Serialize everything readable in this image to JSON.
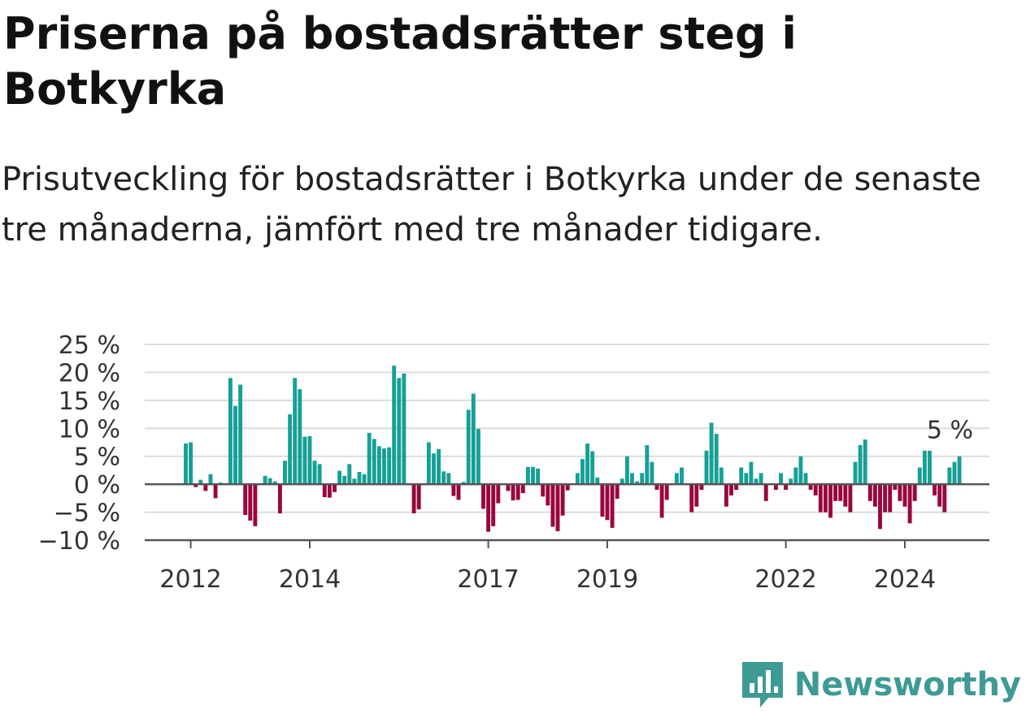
{
  "title": "Priserna på bostadsrätter steg i Botkyrka",
  "subtitle": "Prisutveckling för bostadsrätter i Botkyrka under de senaste tre månaderna, jämfört med tre månader tidigare.",
  "brand": {
    "name": "Newsworthy",
    "icon": "newsworthy-logo-icon",
    "color": "#3e9a95"
  },
  "chart_data": {
    "type": "bar",
    "title": "",
    "xlabel": "",
    "ylabel": "",
    "unit": "%",
    "ylim": [
      -10,
      25
    ],
    "y_ticks": [
      {
        "value": 25,
        "label": "25 %"
      },
      {
        "value": 20,
        "label": "20 %"
      },
      {
        "value": 15,
        "label": "15 %"
      },
      {
        "value": 10,
        "label": "10 %"
      },
      {
        "value": 5,
        "label": "5 %"
      },
      {
        "value": 0,
        "label": "0 %"
      },
      {
        "value": -5,
        "label": "−5 %"
      },
      {
        "value": -10,
        "label": "−10 %"
      }
    ],
    "x_ticks": [
      {
        "label": "2012",
        "index": 1
      },
      {
        "label": "2014",
        "index": 25
      },
      {
        "label": "2017",
        "index": 61
      },
      {
        "label": "2019",
        "index": 85
      },
      {
        "label": "2022",
        "index": 121
      },
      {
        "label": "2024",
        "index": 145
      }
    ],
    "start_month": "2011-12",
    "positive_color": "#16a096",
    "negative_color": "#99063f",
    "grid": true,
    "last_value_label": "5 %",
    "values": [
      7.3,
      7.5,
      -0.5,
      0.8,
      -1.2,
      1.8,
      -2.5,
      0.3,
      0,
      19,
      14,
      17.8,
      -5.5,
      -6.5,
      -7.5,
      0,
      1.5,
      1.1,
      0.5,
      -5.2,
      4.2,
      12.5,
      19,
      17,
      8.5,
      8.6,
      4.2,
      3.6,
      -2.3,
      -2.4,
      -1.4,
      2.4,
      1.5,
      3.6,
      1.0,
      2.2,
      1.8,
      9.2,
      8.1,
      6.8,
      6.4,
      6.6,
      21.2,
      19,
      19.8,
      0,
      -5.2,
      -4.5,
      0,
      7.5,
      5.5,
      6.3,
      2.3,
      2.0,
      -2.1,
      -2.8,
      0.4,
      13.3,
      16.2,
      9.9,
      -4.4,
      -8.5,
      -7.5,
      -3.4,
      0,
      -1.2,
      -2.9,
      -2.8,
      -1.6,
      3.1,
      3.1,
      2.8,
      -2.2,
      -3.8,
      -7.6,
      -8.4,
      -5.6,
      -1.1,
      0,
      2.0,
      4.5,
      7.3,
      5.9,
      1.2,
      -5.8,
      -6.4,
      -7.8,
      -2.6,
      1.0,
      5.0,
      2.0,
      0.5,
      2.0,
      7.0,
      4.0,
      -1.0,
      -6.0,
      -2.8,
      0,
      2.0,
      3.0,
      0,
      -5.0,
      -4.0,
      -1.0,
      6.0,
      11.0,
      9.0,
      3.0,
      -4.0,
      -2.0,
      -1.0,
      3.0,
      2.0,
      4.0,
      1.0,
      2.0,
      -3.0,
      0,
      -1.0,
      2.0,
      -1.0,
      1.0,
      3.0,
      5.0,
      2.0,
      -1.0,
      -2.0,
      -5.0,
      -5.0,
      -6.0,
      -3.0,
      -3.0,
      -4.0,
      -5.0,
      4.0,
      7.0,
      8.0,
      -3.0,
      -4.0,
      -8.0,
      -5.0,
      -5.0,
      -1.0,
      -3.0,
      -4.0,
      -7.0,
      -3.0,
      3.0,
      6.0,
      6.0,
      -2.0,
      -4.0,
      -5.0,
      3.0,
      4.0,
      5.0
    ]
  }
}
